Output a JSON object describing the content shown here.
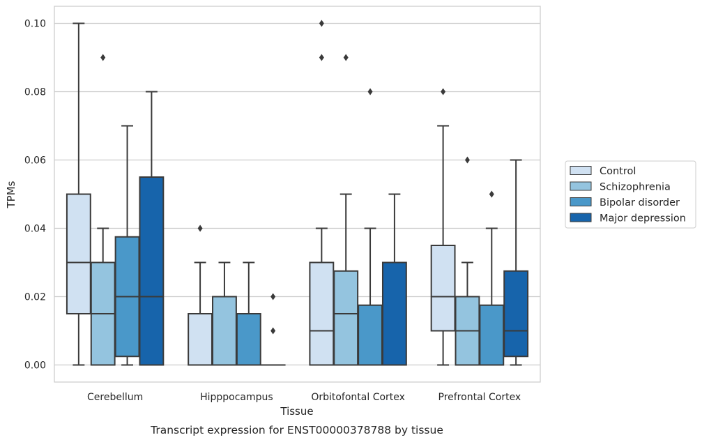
{
  "chart_data": {
    "type": "box",
    "title": "",
    "caption": "Transcript expression for ENST00000378788 by tissue",
    "xlabel": "Tissue",
    "ylabel": "TPMs",
    "ylim": [
      -0.005,
      0.105
    ],
    "yticks": [
      0.0,
      0.02,
      0.04,
      0.06,
      0.08,
      0.1
    ],
    "ytick_labels": [
      "0.00",
      "0.02",
      "0.04",
      "0.06",
      "0.08",
      "0.10"
    ],
    "grid": "horizontal",
    "legend_position": "right",
    "categories": [
      "Cerebellum",
      "Hipppocampus",
      "Orbitofontal Cortex",
      "Prefrontal Cortex"
    ],
    "series": [
      {
        "name": "Control",
        "color": "#d0e1f2",
        "boxes": [
          {
            "whislo": 0.0,
            "q1": 0.015,
            "med": 0.03,
            "q3": 0.05,
            "whishi": 0.1,
            "fliers": []
          },
          {
            "whislo": 0.0,
            "q1": 0.0,
            "med": 0.0,
            "q3": 0.015,
            "whishi": 0.03,
            "fliers": [
              0.04
            ]
          },
          {
            "whislo": 0.0,
            "q1": 0.0,
            "med": 0.01,
            "q3": 0.03,
            "whishi": 0.04,
            "fliers": [
              0.09,
              0.1
            ]
          },
          {
            "whislo": 0.0,
            "q1": 0.01,
            "med": 0.02,
            "q3": 0.035,
            "whishi": 0.07,
            "fliers": [
              0.08
            ]
          }
        ]
      },
      {
        "name": "Schizophrenia",
        "color": "#94c4df",
        "boxes": [
          {
            "whislo": 0.0,
            "q1": 0.0,
            "med": 0.015,
            "q3": 0.03,
            "whishi": 0.04,
            "fliers": [
              0.09
            ]
          },
          {
            "whislo": 0.0,
            "q1": 0.0,
            "med": 0.0,
            "q3": 0.02,
            "whishi": 0.03,
            "fliers": []
          },
          {
            "whislo": 0.0,
            "q1": 0.0,
            "med": 0.015,
            "q3": 0.0275,
            "whishi": 0.05,
            "fliers": [
              0.09
            ]
          },
          {
            "whislo": 0.0,
            "q1": 0.0,
            "med": 0.01,
            "q3": 0.02,
            "whishi": 0.03,
            "fliers": [
              0.06
            ]
          }
        ]
      },
      {
        "name": "Bipolar disorder",
        "color": "#4a98c9",
        "boxes": [
          {
            "whislo": 0.0,
            "q1": 0.0025,
            "med": 0.02,
            "q3": 0.0375,
            "whishi": 0.07,
            "fliers": []
          },
          {
            "whislo": 0.0,
            "q1": 0.0,
            "med": 0.0,
            "q3": 0.015,
            "whishi": 0.03,
            "fliers": []
          },
          {
            "whislo": 0.0,
            "q1": 0.0,
            "med": 0.0,
            "q3": 0.0175,
            "whishi": 0.04,
            "fliers": [
              0.08
            ]
          },
          {
            "whislo": 0.0,
            "q1": 0.0,
            "med": 0.0,
            "q3": 0.0175,
            "whishi": 0.04,
            "fliers": [
              0.05
            ]
          }
        ]
      },
      {
        "name": "Major depression",
        "color": "#1764ab",
        "boxes": [
          {
            "whislo": 0.0,
            "q1": 0.0,
            "med": 0.02,
            "q3": 0.055,
            "whishi": 0.08,
            "fliers": []
          },
          {
            "whislo": 0.0,
            "q1": 0.0,
            "med": 0.0,
            "q3": 0.0,
            "whishi": 0.0,
            "fliers": [
              0.01,
              0.02
            ]
          },
          {
            "whislo": 0.0,
            "q1": 0.0,
            "med": 0.0,
            "q3": 0.03,
            "whishi": 0.05,
            "fliers": []
          },
          {
            "whislo": 0.0,
            "q1": 0.0025,
            "med": 0.01,
            "q3": 0.0275,
            "whishi": 0.06,
            "fliers": []
          }
        ]
      }
    ]
  },
  "colors": {
    "line": "#3a3a3a",
    "grid": "#cccccc",
    "frame": "#cccccc",
    "legend_border": "#cccccc"
  }
}
